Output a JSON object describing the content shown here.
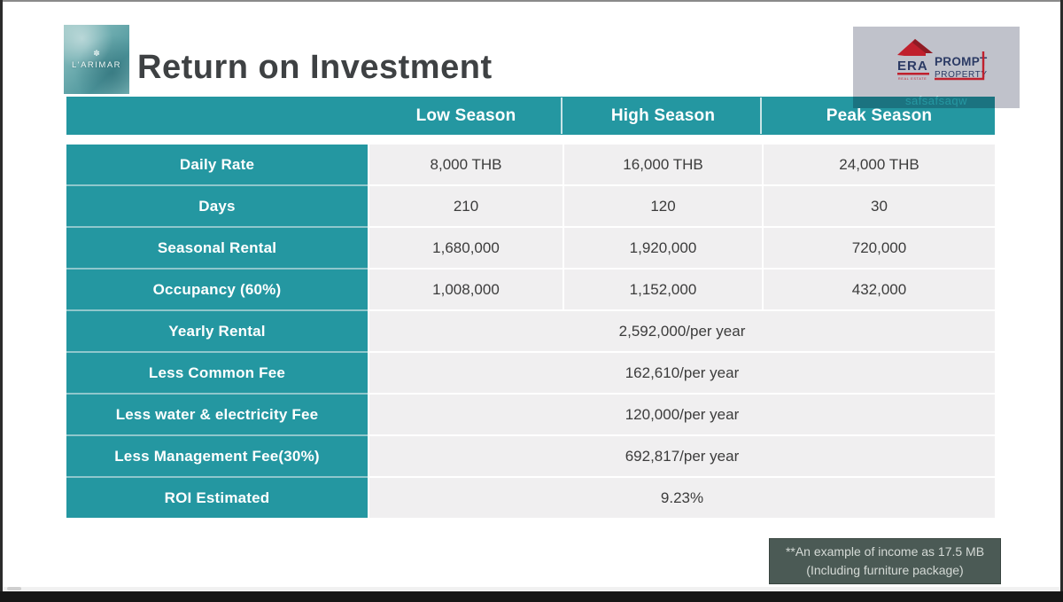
{
  "slide": {
    "title": "Return on Investment",
    "brand_logo": {
      "ornament": "✽",
      "name": "L'ARIMAR"
    },
    "era_logo": {
      "era": "ERA",
      "real_estate": "REAL ESTATE",
      "line1": "PROMPT",
      "line2": "PROPERTY",
      "watermark": "safsafsaqw"
    },
    "note": {
      "line1": "**An example of income as 17.5 MB",
      "line2": "(Including furniture package)"
    }
  },
  "table": {
    "columns": [
      "",
      "Low Season",
      "High Season",
      "Peak Season"
    ],
    "rows": [
      {
        "label": "Daily Rate",
        "values": [
          "8,000 THB",
          "16,000 THB",
          "24,000 THB"
        ]
      },
      {
        "label": "Days",
        "values": [
          "210",
          "120",
          "30"
        ]
      },
      {
        "label": "Seasonal Rental",
        "values": [
          "1,680,000",
          "1,920,000",
          "720,000"
        ]
      },
      {
        "label": "Occupancy (60%)",
        "values": [
          "1,008,000",
          "1,152,000",
          "432,000"
        ]
      },
      {
        "label": "Yearly Rental",
        "merged": "2,592,000/per year"
      },
      {
        "label": "Less Common Fee",
        "merged": "162,610/per year"
      },
      {
        "label": "Less water & electricity Fee",
        "merged": "120,000/per year"
      },
      {
        "label": "Less Management Fee(30%)",
        "merged": "692,817/per year"
      },
      {
        "label": "ROI Estimated",
        "merged": "9.23%"
      }
    ]
  },
  "colors": {
    "accent_teal": "#2497A1",
    "label_separator_teal": "#8FC7CC",
    "cell_background": "#F0EFF0",
    "cell_text": "#3C3C3C",
    "title_text": "#3E4143",
    "note_background": "#4B5A55",
    "note_text": "#D5DAD6",
    "era_navy": "#2B3A64",
    "era_red": "#C0202D",
    "logo_box_gray": "#C0C2CB",
    "frame_black": "#161616"
  }
}
